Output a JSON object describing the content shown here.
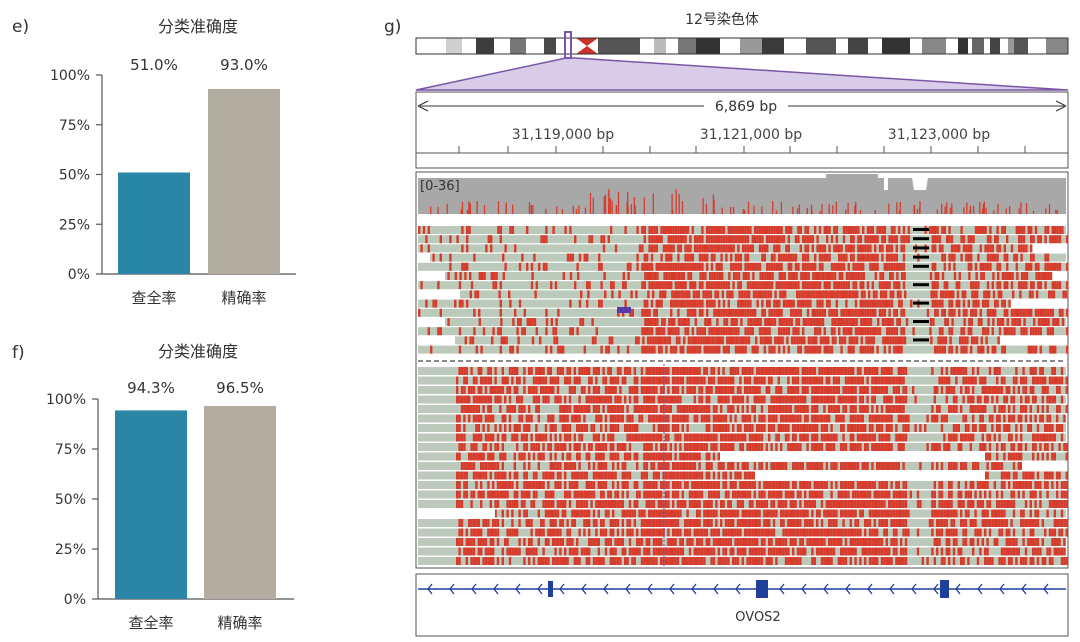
{
  "chart_data": [
    {
      "id": "e",
      "panel_label": "e)",
      "type": "bar",
      "title": "分类准确度",
      "categories": [
        "查全率",
        "精确率"
      ],
      "values": [
        51.0,
        93.0
      ],
      "value_labels": [
        "51.0%",
        "93.0%"
      ],
      "ylim": [
        0,
        100
      ],
      "yticks": [
        "0%",
        "25%",
        "50%",
        "75%",
        "100%"
      ],
      "colors": [
        "#2a86a6",
        "#b3ada1"
      ]
    },
    {
      "id": "f",
      "panel_label": "f)",
      "type": "bar",
      "title": "分类准确度",
      "categories": [
        "查全率",
        "精确率"
      ],
      "values": [
        94.3,
        96.5
      ],
      "value_labels": [
        "94.3%",
        "96.5%"
      ],
      "ylim": [
        0,
        100
      ],
      "yticks": [
        "0%",
        "25%",
        "50%",
        "75%",
        "100%"
      ],
      "colors": [
        "#2a86a6",
        "#b3ada1"
      ]
    },
    {
      "id": "g",
      "panel_label": "g)",
      "type": "genome-track",
      "chromosome_title": "12号染色体",
      "span_label": "6,869 bp",
      "ticks": [
        "31,119,000 bp",
        "31,121,000 bp",
        "31,123,000 bp"
      ],
      "coverage_range": "[0-36]",
      "gene_name": "OVOS2",
      "colors": {
        "accent": "#7b55a8",
        "mismatch": "#d63b2c",
        "read": "#bccabb",
        "coverage": "#a8a8a8",
        "gene": "#1f3f9a"
      }
    }
  ]
}
